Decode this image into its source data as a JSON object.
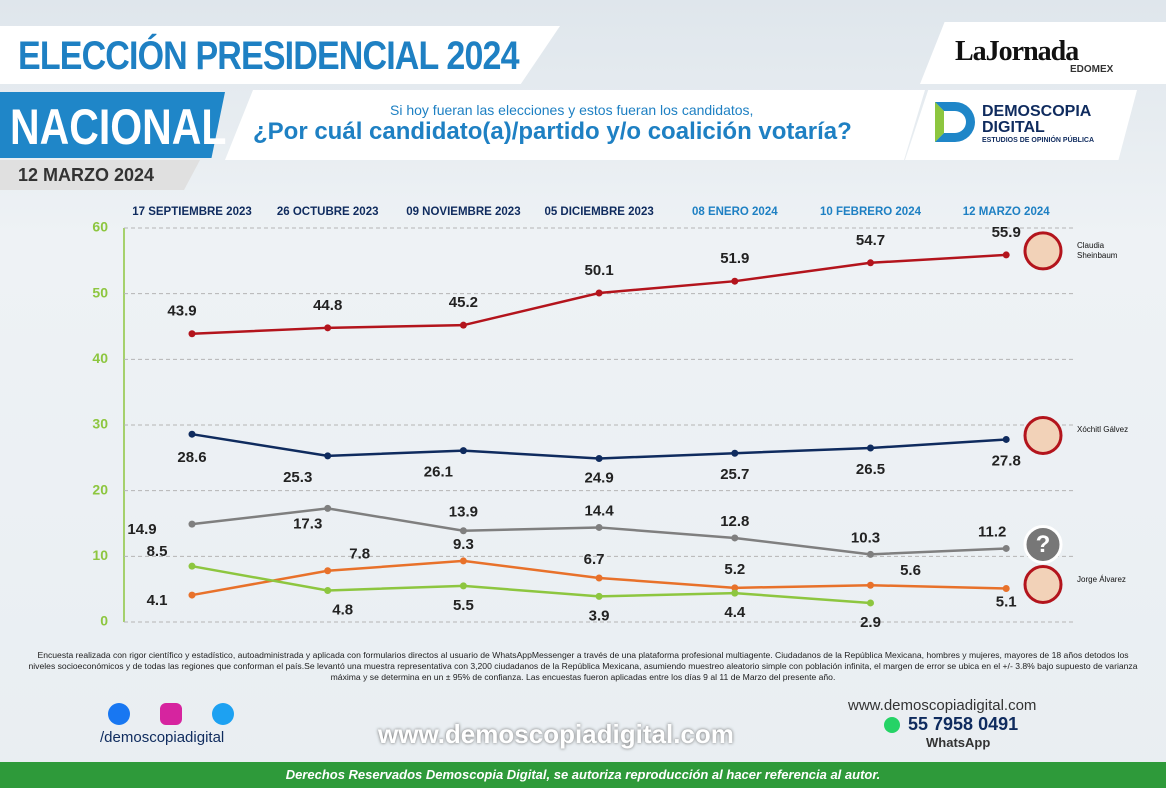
{
  "header": {
    "title": "ELECCIÓN PRESIDENCIAL 2024",
    "region": "NACIONAL",
    "question_intro": "Si hoy fueran las elecciones y estos fueran los candidatos,",
    "question": "¿Por cuál candidato(a)/partido y/o coalición votaría?",
    "date": "12 MARZO 2024",
    "newspaper": "LaJornada",
    "newspaper_sub": "EDOMEX",
    "pollster": "DEMOSCOPIA DIGITAL",
    "pollster_sub": "ESTUDIOS DE OPINIÓN PÚBLICA"
  },
  "chart_data": {
    "type": "line",
    "categories": [
      "17 SEPTIEMBRE 2023",
      "26 OCTUBRE 2023",
      "09 NOVIEMBRE 2023",
      "05 DICIEMBRE 2023",
      "08 ENERO 2024",
      "10 FEBRERO 2024",
      "12 MARZO 2024"
    ],
    "series": [
      {
        "name": "Claudia Sheinbaum",
        "color": "#b3141c",
        "values": [
          43.9,
          44.8,
          45.2,
          50.1,
          51.9,
          54.7,
          55.9
        ]
      },
      {
        "name": "Xóchitl Gálvez",
        "color": "#0f2b5e",
        "values": [
          28.6,
          25.3,
          26.1,
          24.9,
          25.7,
          26.5,
          27.8
        ]
      },
      {
        "name": "?",
        "color": "#7f7f7f",
        "values": [
          14.9,
          17.3,
          13.9,
          14.4,
          12.8,
          10.3,
          11.2
        ]
      },
      {
        "name": "Jorge Álvarez",
        "color": "#e8712a",
        "values": [
          4.1,
          7.8,
          9.3,
          6.7,
          5.2,
          5.6,
          5.1
        ]
      },
      {
        "color": "#8dc63f",
        "values": [
          8.5,
          4.8,
          5.5,
          3.9,
          4.4,
          2.9,
          null
        ]
      }
    ],
    "ylim": [
      0,
      60
    ],
    "yticks": [
      0,
      10,
      20,
      30,
      40,
      50,
      60
    ],
    "grid": true
  },
  "footer": {
    "note": "Encuesta realizada con rigor científico y estadístico, autoadministrada y aplicada con formularios directos al usuario de WhatsAppMessenger a través de una plataforma profesional multiagente. Ciudadanos de la República Mexicana, hombres y mujeres, mayores de 18 años detodos los niveles socioeconómicos y de todas las regiones que conforman el país.Se levantó una muestra representativa con 3,200 ciudadanos de la República Mexicana, asumiendo muestreo aleatorio simple con población infinita, el margen de error se ubica en el +/- 3.8% bajo supuesto de varianza máxima y se determina en un ± 95% de confianza. Las encuestas fueron aplicadas entre los días 9 al 11 de Marzo del presente año.",
    "social": "/demoscopiadigital",
    "website": "www.demoscopiadigital.com",
    "small_website": "www.demoscopiadigital.com",
    "phone": "55 7958 0491",
    "whatsapp": "WhatsApp",
    "rights": "Derechos Reservados Demoscopia Digital, se autoriza reproducción al hacer referencia al autor."
  }
}
